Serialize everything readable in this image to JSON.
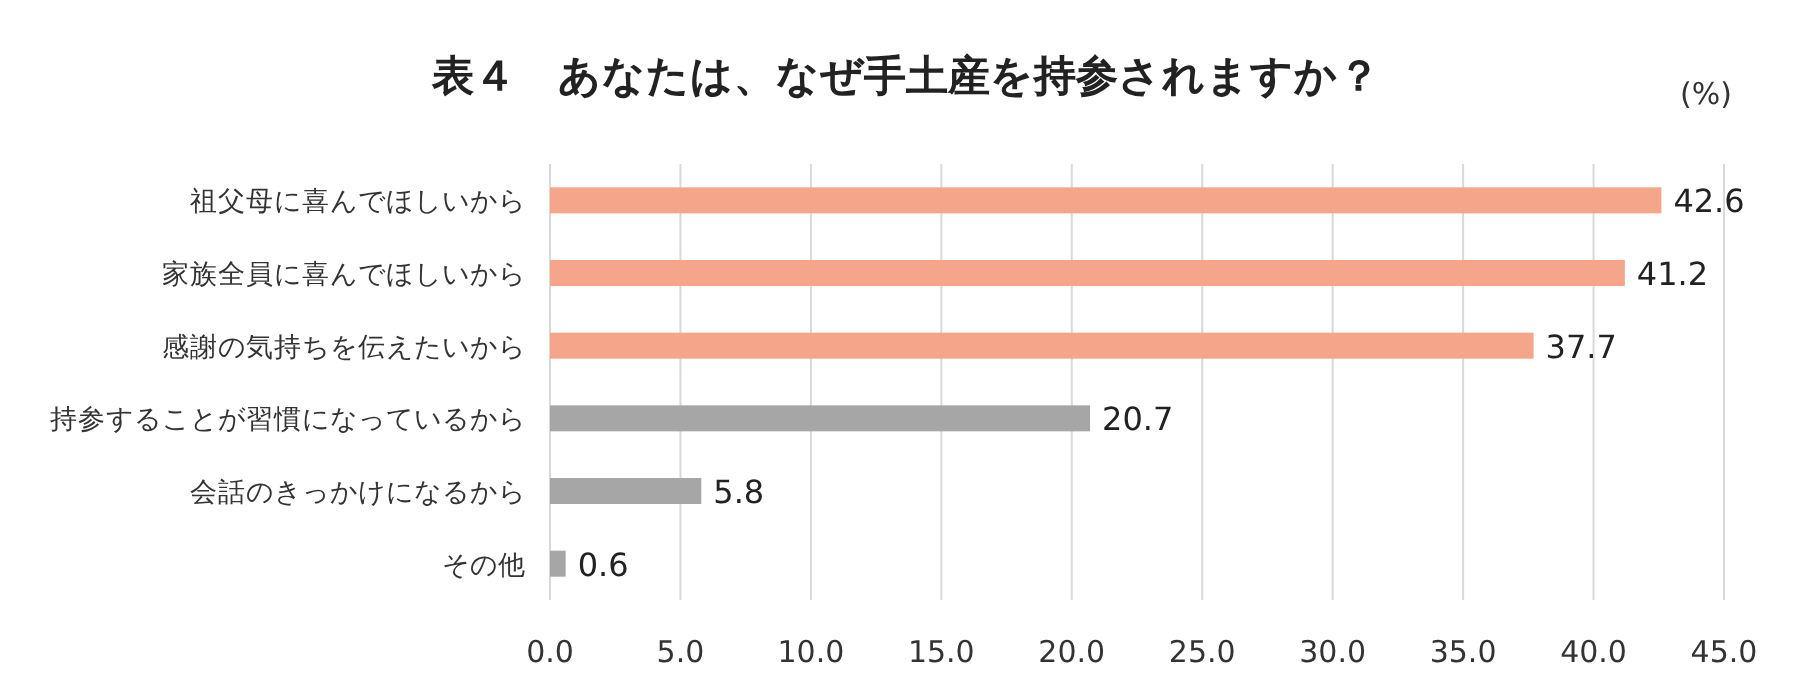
{
  "chart_data": {
    "type": "bar",
    "orientation": "horizontal",
    "title": "表４　あなたは、なぜ手土産を持参されますか？",
    "annotations": [
      "(%)"
    ],
    "categories": [
      "祖父母に喜んでほしいから",
      "家族全員に喜んでほしいから",
      "感謝の気持ちを伝えたいから",
      "持参することが習慣になっているから",
      "会話のきっかけになるから",
      "その他"
    ],
    "values": [
      42.6,
      41.2,
      37.7,
      20.7,
      5.8,
      0.6
    ],
    "colors": [
      "#f4a58a",
      "#f4a58a",
      "#f4a58a",
      "#a6a6a6",
      "#a6a6a6",
      "#a6a6a6"
    ],
    "data_labels": true,
    "grid": "x",
    "xlim": [
      0,
      45
    ],
    "xticks": [
      {
        "value": 0,
        "label": "0.0"
      },
      {
        "value": 5,
        "label": "5.0"
      },
      {
        "value": 10,
        "label": "10.0"
      },
      {
        "value": 15,
        "label": "15.0"
      },
      {
        "value": 20,
        "label": "20.0"
      },
      {
        "value": 25,
        "label": "25.0"
      },
      {
        "value": 30,
        "label": "30.0"
      },
      {
        "value": 35,
        "label": "35.0"
      },
      {
        "value": 40,
        "label": "40.0"
      },
      {
        "value": 45,
        "label": "45.0"
      }
    ]
  }
}
